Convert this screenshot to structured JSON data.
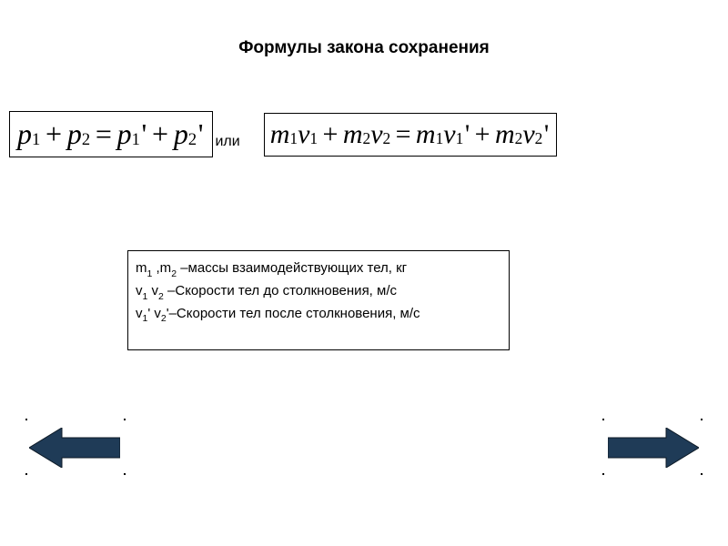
{
  "title": "Формулы закона сохранения",
  "connector": "или",
  "formula1": {
    "terms": [
      {
        "var": "p",
        "sub": "1"
      },
      {
        "op": "+"
      },
      {
        "var": "p",
        "sub": "2"
      },
      {
        "op": "="
      },
      {
        "var": "p",
        "sub": "1",
        "prime": true
      },
      {
        "op": "+"
      },
      {
        "var": "p",
        "sub": "2",
        "prime": true
      }
    ]
  },
  "formula2": {
    "terms": [
      {
        "var": "m",
        "sub": "1"
      },
      {
        "var": "v",
        "sub": "1"
      },
      {
        "op": "+"
      },
      {
        "var": "m",
        "sub": "2"
      },
      {
        "var": "v",
        "sub": "2"
      },
      {
        "op": "="
      },
      {
        "var": "m",
        "sub": "1"
      },
      {
        "var": "v",
        "sub": "1",
        "prime": true
      },
      {
        "op": "+"
      },
      {
        "var": "m",
        "sub": "2"
      },
      {
        "var": "v",
        "sub": "2",
        "prime": true
      }
    ]
  },
  "legend": {
    "lines": [
      {
        "parts": [
          {
            "t": "m"
          },
          {
            "sub": "1"
          },
          {
            "t": " ,m"
          },
          {
            "sub": "2"
          },
          {
            "t": " –массы взаимодействующих  тел, кг"
          }
        ]
      },
      {
        "parts": [
          {
            "t": "v"
          },
          {
            "sub": "1"
          },
          {
            "t": " v"
          },
          {
            "sub": "2"
          },
          {
            "t": " –Скорости тел до столкновения, м/с"
          }
        ]
      },
      {
        "parts": [
          {
            "t": "v"
          },
          {
            "sub": "1"
          },
          {
            "t": "' v"
          },
          {
            "sub": "2"
          },
          {
            "t": "'–Скорости тел после столкновения, м/с"
          }
        ]
      }
    ]
  },
  "colors": {
    "arrow_fill": "#1f3b57",
    "arrow_stroke": "#0d1a26",
    "background": "#ffffff",
    "text": "#000000",
    "border": "#000000"
  },
  "arrow": {
    "width": 100,
    "height": 44,
    "head_width": 36,
    "shaft_height_ratio": 0.5
  }
}
